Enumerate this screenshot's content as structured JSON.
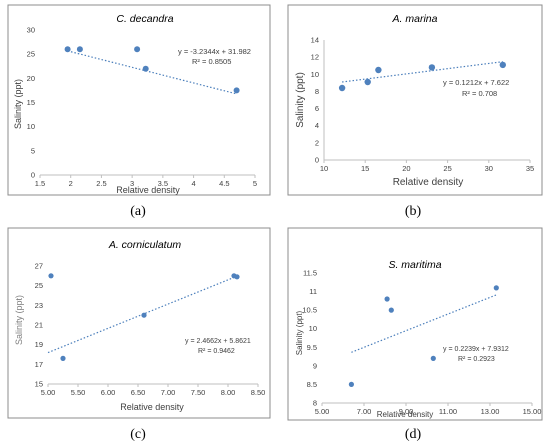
{
  "chart_data": [
    {
      "panel": "(a)",
      "type": "scatter",
      "title": "C. decandra",
      "xlabel": "Relative density",
      "ylabel": "Salinity (ppt)",
      "xlim": [
        1.5,
        5
      ],
      "ylim": [
        0,
        30
      ],
      "xticks": [
        "1.5",
        "2",
        "2.5",
        "3",
        "3.5",
        "4",
        "4.5",
        "5"
      ],
      "yticks": [
        "0",
        "5",
        "10",
        "15",
        "20",
        "25",
        "30"
      ],
      "x": [
        1.95,
        2.15,
        3.08,
        3.22,
        4.7
      ],
      "y": [
        26,
        26,
        26,
        22,
        17.5
      ],
      "trendline": {
        "slope": -3.2344,
        "intercept": 31.982,
        "x_range": [
          1.95,
          4.7
        ]
      },
      "equation": "y = -3.2344x + 31.982",
      "r2": "R² = 0.8505"
    },
    {
      "panel": "(b)",
      "type": "scatter",
      "title": "A. marina",
      "xlabel": "Relative density",
      "ylabel": "Salinity (ppt)",
      "xlim": [
        10,
        35
      ],
      "ylim": [
        0,
        14
      ],
      "xticks": [
        "10",
        "15",
        "20",
        "25",
        "30",
        "35"
      ],
      "yticks": [
        "0",
        "2",
        "4",
        "6",
        "8",
        "10",
        "12",
        "14"
      ],
      "x": [
        12.2,
        15.3,
        16.6,
        23.1,
        31.7
      ],
      "y": [
        8.4,
        9.1,
        10.5,
        10.8,
        11.1
      ],
      "trendline": {
        "slope": 0.1212,
        "intercept": 7.622,
        "x_range": [
          12.2,
          31.7
        ]
      },
      "equation": "y = 0.1212x + 7.622",
      "r2": "R² = 0.708"
    },
    {
      "panel": "(c)",
      "type": "scatter",
      "title": "A. corniculatum",
      "xlabel": "Relative density",
      "ylabel": "Salinity (ppt)",
      "xlim": [
        5.0,
        8.5
      ],
      "ylim": [
        15,
        27
      ],
      "xticks": [
        "5.00",
        "5.50",
        "6.00",
        "6.50",
        "7.00",
        "7.50",
        "8.00",
        "8.50"
      ],
      "yticks": [
        "15",
        "17",
        "19",
        "21",
        "23",
        "25",
        "27"
      ],
      "x": [
        5.05,
        5.25,
        6.6,
        8.1,
        8.15
      ],
      "y": [
        26,
        17.6,
        22,
        26,
        25.9
      ],
      "trendline": {
        "slope": 2.4662,
        "intercept": 5.8621,
        "x_range": [
          5.0,
          8.15
        ]
      },
      "equation": "y = 2.4662x + 5.8621",
      "r2": "R² = 0.9462"
    },
    {
      "panel": "(d)",
      "type": "scatter",
      "title": "S. maritima",
      "xlabel": "Relative density",
      "ylabel": "Salinity (ppt)",
      "xlim": [
        5.0,
        15.0
      ],
      "ylim": [
        8,
        11.5
      ],
      "xticks": [
        "5.00",
        "7.00",
        "9.00",
        "11.00",
        "13.00",
        "15.00"
      ],
      "yticks": [
        "8",
        "8.5",
        "9",
        "9.5",
        "10",
        "10.5",
        "11",
        "11.5"
      ],
      "x": [
        6.4,
        8.1,
        8.3,
        10.3,
        13.3
      ],
      "y": [
        8.5,
        10.8,
        10.5,
        9.2,
        11.1
      ],
      "trendline": {
        "slope": 0.2239,
        "intercept": 7.9312,
        "x_range": [
          6.4,
          13.3
        ]
      },
      "equation": "y = 0.2239x + 7.9312",
      "r2": "R² = 0.2923"
    }
  ]
}
